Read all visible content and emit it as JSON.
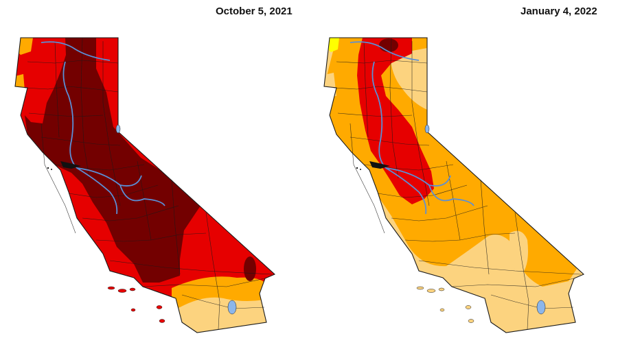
{
  "maps": [
    {
      "title": "October 5, 2021"
    },
    {
      "title": "January 4, 2022"
    }
  ],
  "colors": {
    "background": "#ffffff",
    "exceptional_drought": "#730000",
    "extreme_drought": "#e60000",
    "severe_drought": "#ffaa00",
    "moderate_drought": "#fcd37f",
    "abnormally_dry": "#ffff00",
    "water": "#8cb6ea",
    "rivers": "#5b8fd6",
    "county_lines": "#1a1a1a"
  }
}
